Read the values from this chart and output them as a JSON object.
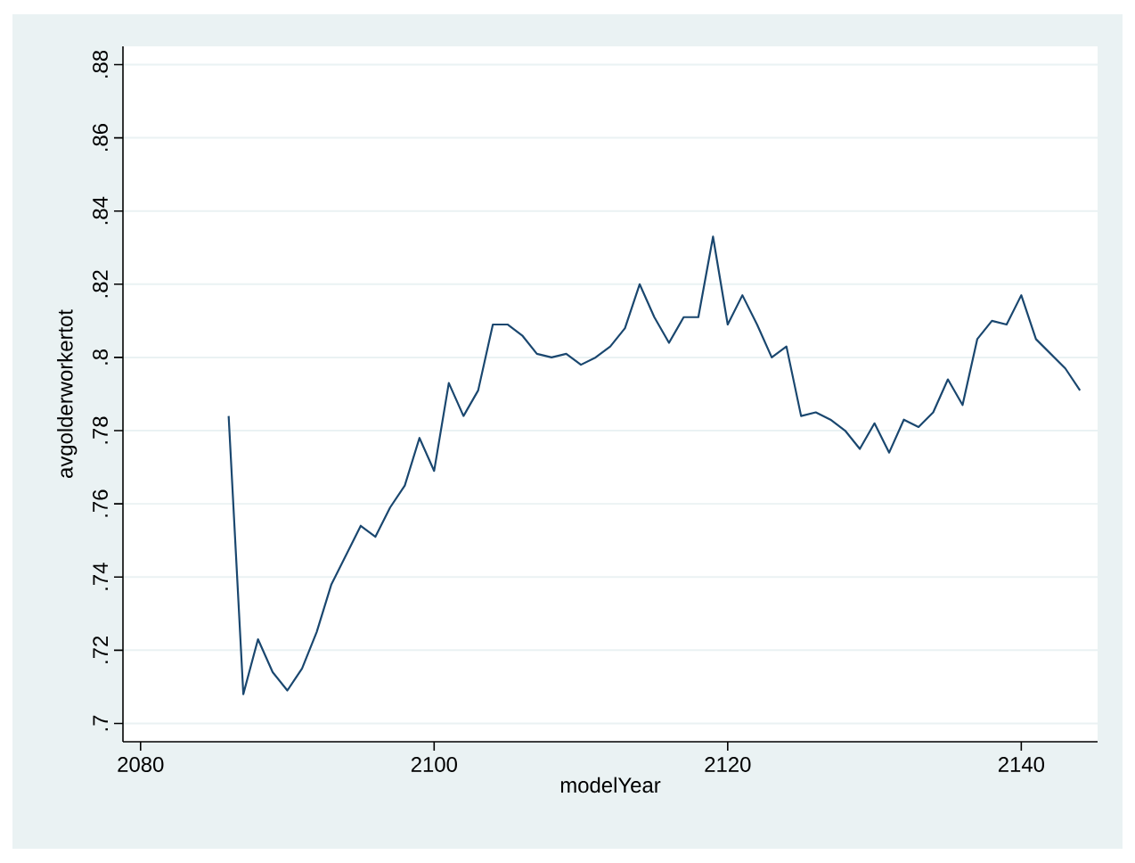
{
  "chart_data": {
    "type": "line",
    "xlabel": "modelYear",
    "ylabel": "avgolderworkertot",
    "x": [
      2086,
      2087,
      2088,
      2089,
      2090,
      2091,
      2092,
      2093,
      2094,
      2095,
      2096,
      2097,
      2098,
      2099,
      2100,
      2101,
      2102,
      2103,
      2104,
      2105,
      2106,
      2107,
      2108,
      2109,
      2110,
      2111,
      2112,
      2113,
      2114,
      2115,
      2116,
      2117,
      2118,
      2119,
      2120,
      2121,
      2122,
      2123,
      2124,
      2125,
      2126,
      2127,
      2128,
      2129,
      2130,
      2131,
      2132,
      2133,
      2134,
      2135,
      2136,
      2137,
      2138,
      2139,
      2140,
      2141,
      2142,
      2143,
      2144
    ],
    "series": [
      {
        "color": "#1a476f",
        "values": [
          0.784,
          0.708,
          0.723,
          0.714,
          0.709,
          0.715,
          0.725,
          0.738,
          0.746,
          0.754,
          0.751,
          0.759,
          0.765,
          0.778,
          0.769,
          0.793,
          0.784,
          0.791,
          0.809,
          0.809,
          0.806,
          0.801,
          0.8,
          0.801,
          0.798,
          0.8,
          0.803,
          0.808,
          0.82,
          0.811,
          0.804,
          0.811,
          0.811,
          0.833,
          0.809,
          0.817,
          0.809,
          0.8,
          0.803,
          0.784,
          0.785,
          0.783,
          0.78,
          0.775,
          0.782,
          0.774,
          0.783,
          0.781,
          0.785,
          0.794,
          0.787,
          0.805,
          0.81,
          0.809,
          0.817,
          0.805,
          0.801,
          0.797,
          0.791
        ]
      }
    ],
    "xlim": [
      2078.8,
      2145.2
    ],
    "ylim": [
      0.695,
      0.885
    ],
    "xticks": [
      2080,
      2100,
      2120,
      2140
    ],
    "yticks": [
      {
        "value": 0.7,
        "label": ".7"
      },
      {
        "value": 0.72,
        "label": ".72"
      },
      {
        "value": 0.74,
        "label": ".74"
      },
      {
        "value": 0.76,
        "label": ".76"
      },
      {
        "value": 0.78,
        "label": ".78"
      },
      {
        "value": 0.8,
        "label": ".8"
      },
      {
        "value": 0.82,
        "label": ".82"
      },
      {
        "value": 0.84,
        "label": ".84"
      },
      {
        "value": 0.86,
        "label": ".86"
      },
      {
        "value": 0.88,
        "label": ".88"
      }
    ],
    "grid": "y",
    "marker": "none",
    "line_style": "solid"
  }
}
